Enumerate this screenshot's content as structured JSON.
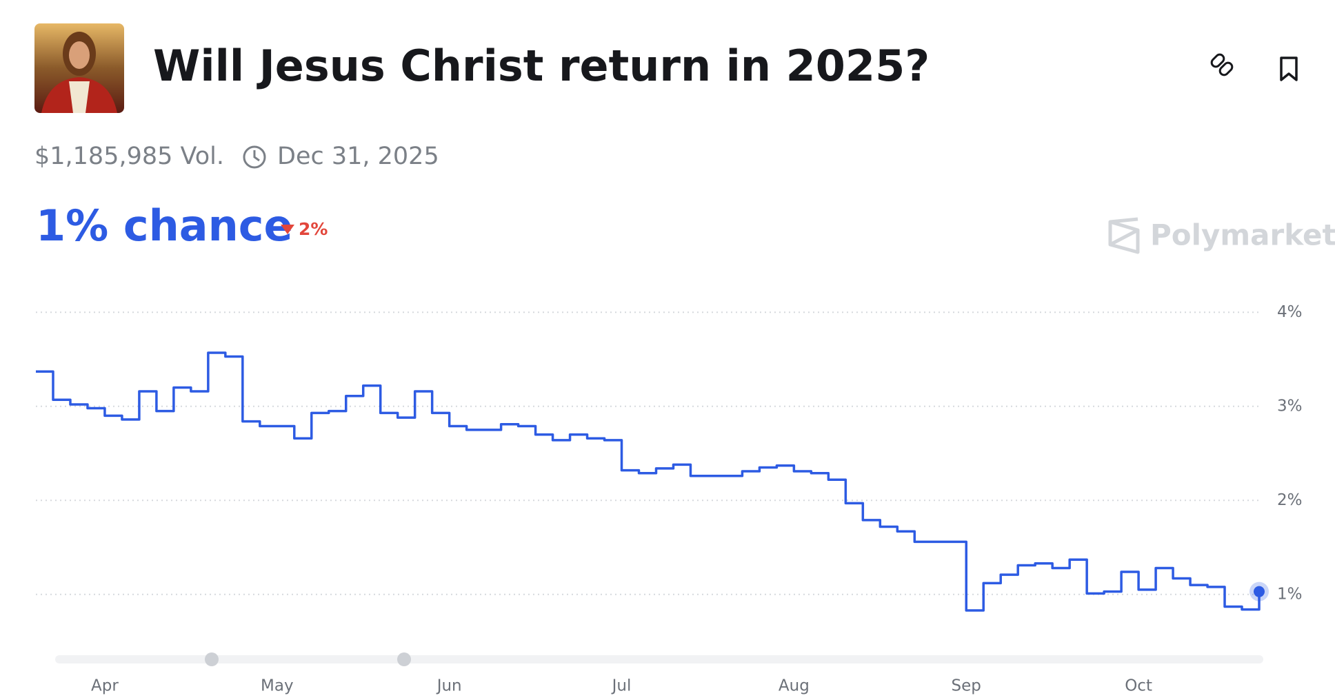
{
  "header": {
    "title": "Will Jesus Christ return in 2025?"
  },
  "stats": {
    "volume": "$1,185,985 Vol.",
    "end_date": "Dec 31, 2025"
  },
  "headline": {
    "chance": "1% chance",
    "change": "2%"
  },
  "brand": "Polymarket",
  "chart_data": {
    "type": "line",
    "color": "#2d5be3",
    "categories": [
      null,
      null,
      null,
      null,
      "Apr",
      null,
      null,
      null,
      null,
      null,
      null,
      null,
      null,
      null,
      "May",
      null,
      null,
      null,
      null,
      null,
      null,
      null,
      null,
      null,
      "Jun",
      null,
      null,
      null,
      null,
      null,
      null,
      null,
      null,
      null,
      "Jul",
      null,
      null,
      null,
      null,
      null,
      null,
      null,
      null,
      null,
      "Aug",
      null,
      null,
      null,
      null,
      null,
      null,
      null,
      null,
      null,
      "Sep",
      null,
      null,
      null,
      null,
      null,
      null,
      null,
      null,
      null,
      "Oct",
      null,
      null,
      null,
      null,
      null,
      null,
      null
    ],
    "values": [
      3.37,
      3.07,
      3.02,
      2.98,
      2.9,
      2.86,
      3.16,
      2.95,
      3.2,
      3.16,
      3.57,
      3.53,
      2.84,
      2.79,
      2.79,
      2.66,
      2.93,
      2.95,
      3.11,
      3.22,
      2.93,
      2.88,
      3.16,
      2.93,
      2.79,
      2.75,
      2.75,
      2.81,
      2.79,
      2.7,
      2.64,
      2.7,
      2.66,
      2.64,
      2.32,
      2.29,
      2.34,
      2.38,
      2.26,
      2.26,
      2.26,
      2.31,
      2.35,
      2.37,
      2.31,
      2.29,
      2.22,
      1.97,
      1.79,
      1.72,
      1.67,
      1.56,
      1.56,
      1.56,
      0.83,
      1.12,
      1.21,
      1.31,
      1.33,
      1.28,
      1.37,
      1.01,
      1.03,
      1.24,
      1.05,
      1.28,
      1.17,
      1.1,
      1.08,
      0.87,
      0.84,
      1.03
    ],
    "ylim": [
      0.5,
      4.2
    ],
    "yticks": [
      {
        "value": 1,
        "label": "1%"
      },
      {
        "value": 2,
        "label": "2%"
      },
      {
        "value": 3,
        "label": "3%"
      },
      {
        "value": 4,
        "label": "4%"
      }
    ],
    "grid": true
  }
}
